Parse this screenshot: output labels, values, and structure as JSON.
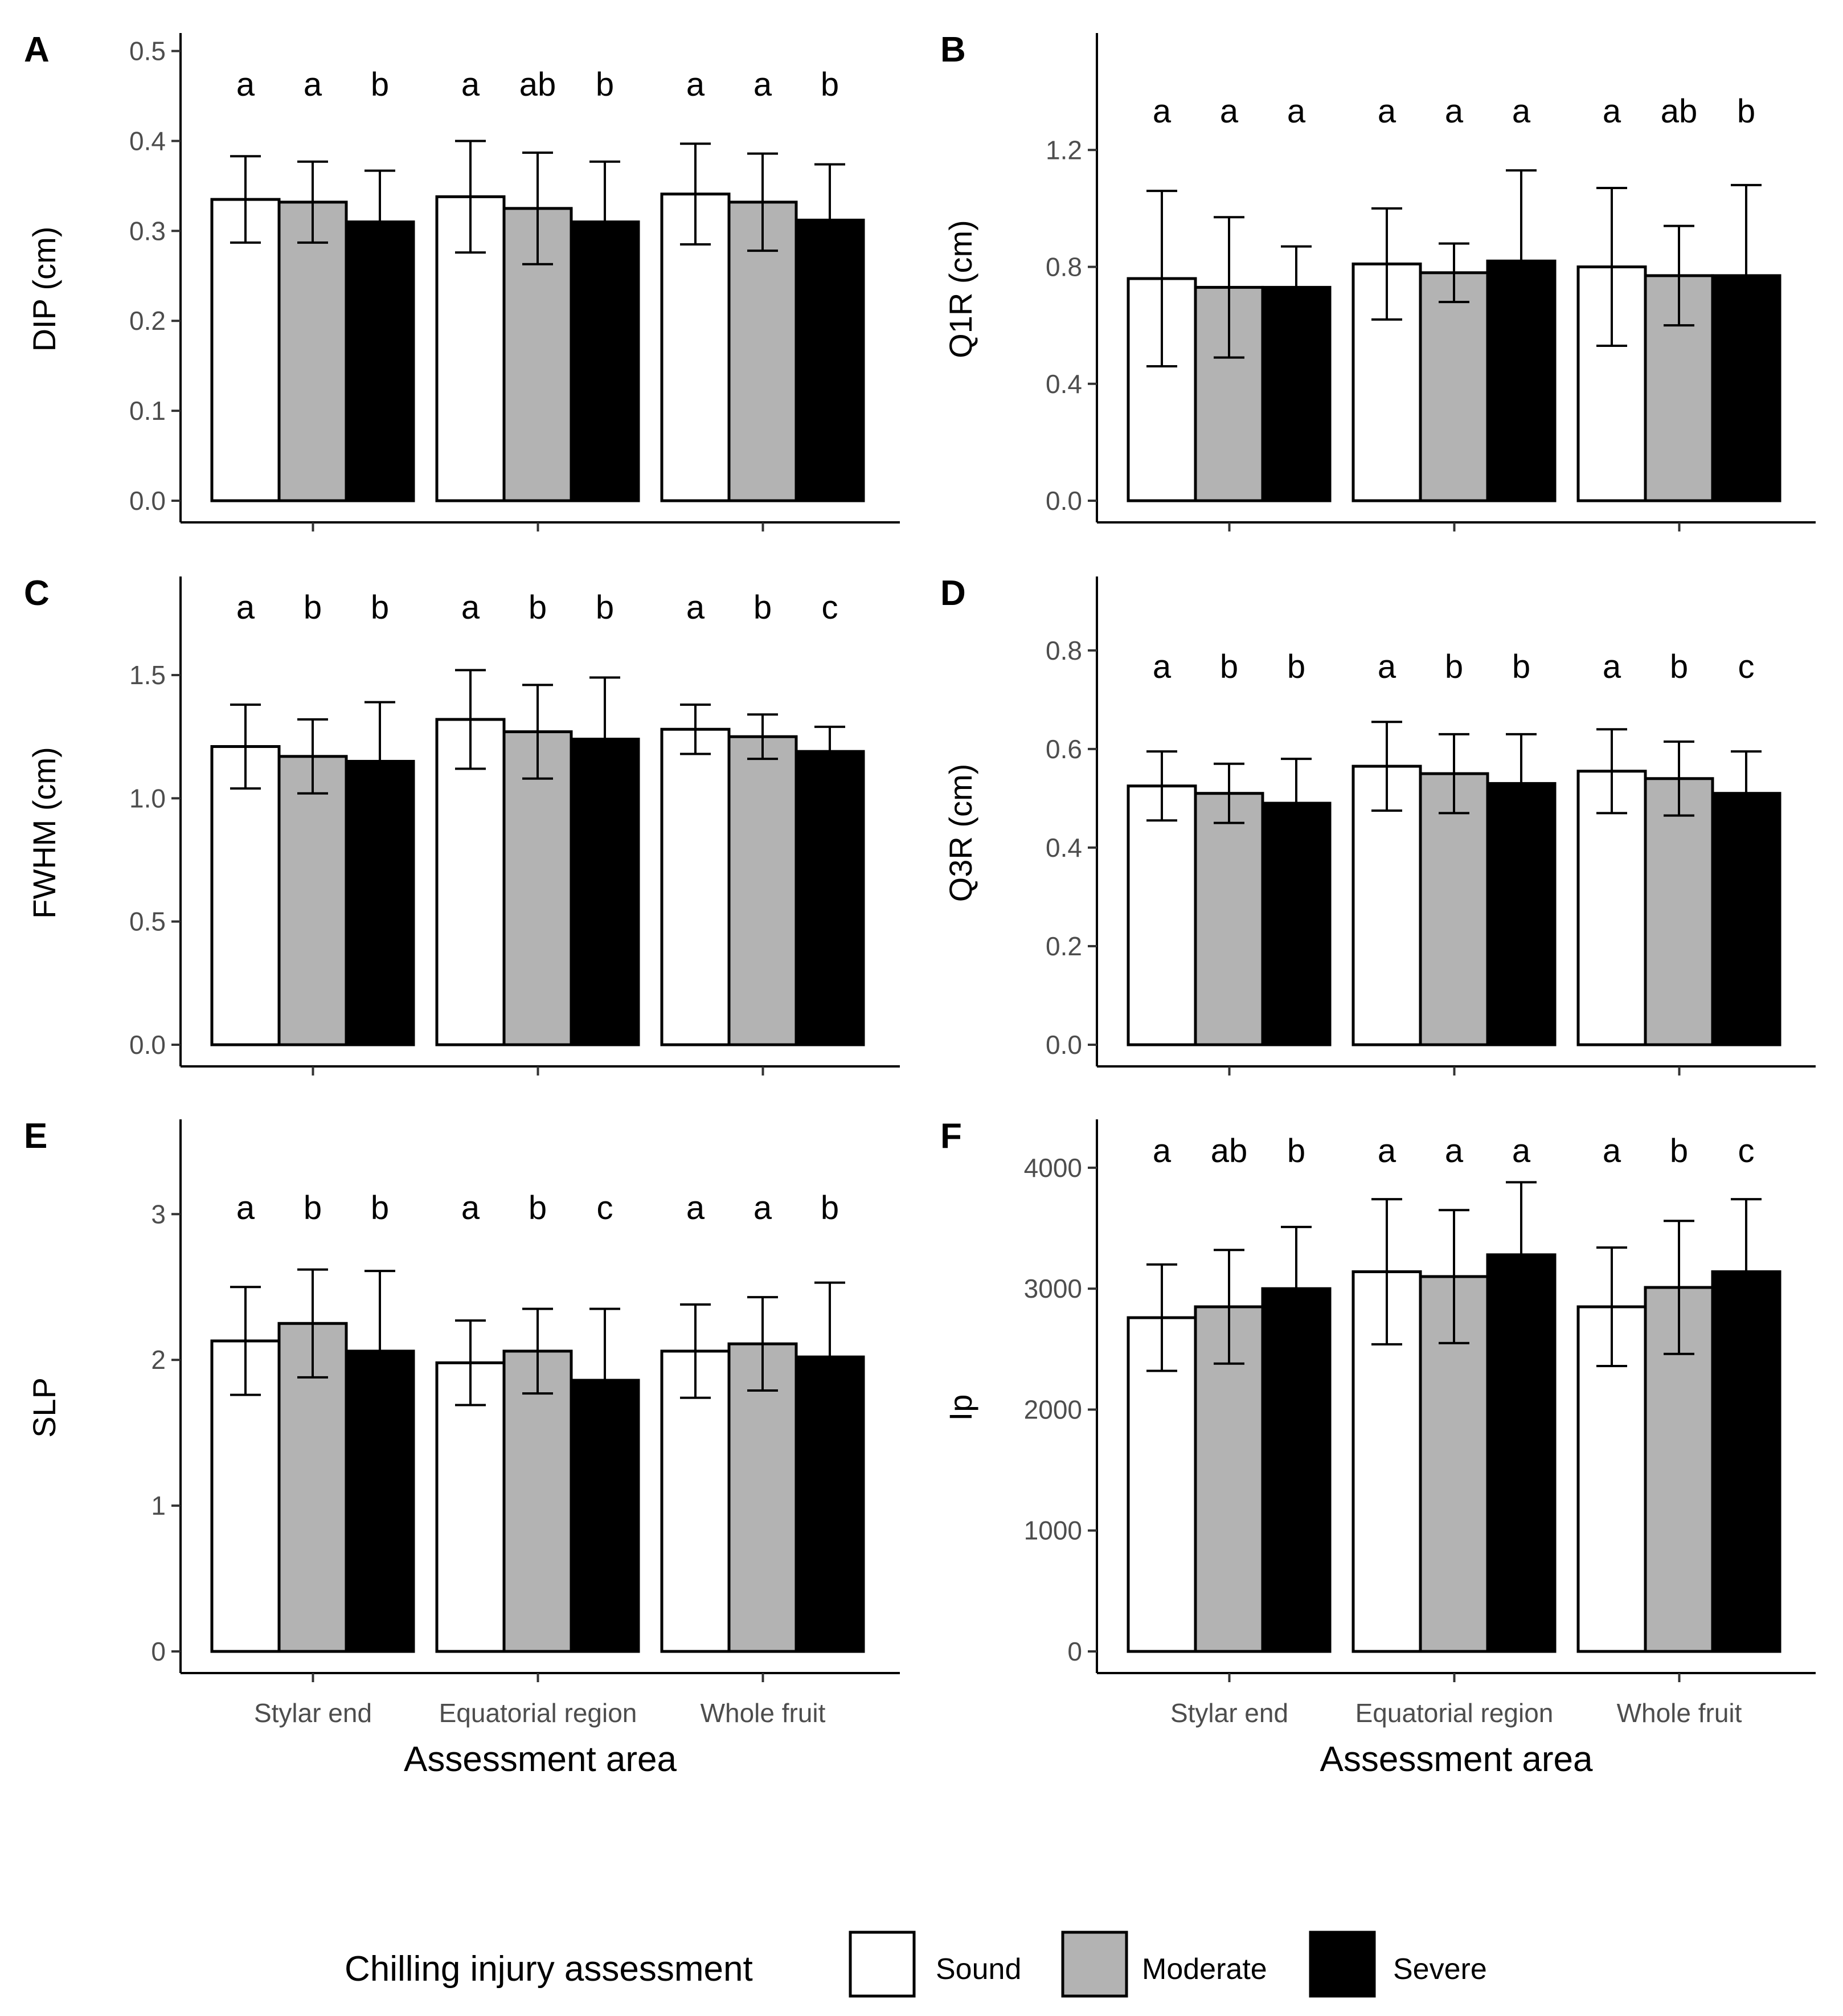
{
  "categories": [
    "Stylar end",
    "Equatorial region",
    "Whole fruit"
  ],
  "xlabel": "Assessment area",
  "legend": {
    "title": "Chilling injury assessment",
    "items": [
      {
        "name": "Sound",
        "color": "#ffffff"
      },
      {
        "name": "Moderate",
        "color": "#b3b3b3"
      },
      {
        "name": "Severe",
        "color": "#000000"
      }
    ]
  },
  "chart_data": [
    {
      "panel": "A",
      "type": "bar",
      "ylabel": "DIP (cm)",
      "ylim": [
        0,
        0.52
      ],
      "yticks": [
        "0.0",
        "0.1",
        "0.2",
        "0.3",
        "0.4",
        "0.5"
      ],
      "categories": [
        "Stylar end",
        "Equatorial region",
        "Whole fruit"
      ],
      "series": [
        {
          "name": "Sound",
          "values": [
            0.335,
            0.338,
            0.341
          ],
          "err": [
            0.048,
            0.062,
            0.056
          ]
        },
        {
          "name": "Moderate",
          "values": [
            0.332,
            0.325,
            0.332
          ],
          "err": [
            0.045,
            0.062,
            0.054
          ]
        },
        {
          "name": "Severe",
          "values": [
            0.31,
            0.31,
            0.312
          ],
          "err": [
            0.057,
            0.067,
            0.062
          ]
        }
      ],
      "letters": [
        [
          "a",
          "a",
          "b"
        ],
        [
          "a",
          "ab",
          "b"
        ],
        [
          "a",
          "a",
          "b"
        ]
      ]
    },
    {
      "panel": "B",
      "type": "bar",
      "ylabel": "Q1R (cm)",
      "ylim": [
        0,
        1.6
      ],
      "yticks": [
        "0.0",
        "0.4",
        "0.8",
        "1.2"
      ],
      "categories": [
        "Stylar end",
        "Equatorial region",
        "Whole fruit"
      ],
      "series": [
        {
          "name": "Sound",
          "values": [
            0.76,
            0.81,
            0.8
          ],
          "err": [
            0.3,
            0.19,
            0.27
          ]
        },
        {
          "name": "Moderate",
          "values": [
            0.73,
            0.78,
            0.77
          ],
          "err": [
            0.24,
            0.1,
            0.17
          ]
        },
        {
          "name": "Severe",
          "values": [
            0.73,
            0.82,
            0.77
          ],
          "err": [
            0.14,
            0.31,
            0.31
          ]
        }
      ],
      "letters": [
        [
          "a",
          "a",
          "a"
        ],
        [
          "a",
          "a",
          "a"
        ],
        [
          "a",
          "ab",
          "b"
        ]
      ]
    },
    {
      "panel": "C",
      "type": "bar",
      "ylabel": "FWHM (cm)",
      "ylim": [
        0,
        1.9
      ],
      "yticks": [
        "0.0",
        "0.5",
        "1.0",
        "1.5"
      ],
      "categories": [
        "Stylar end",
        "Equatorial region",
        "Whole fruit"
      ],
      "series": [
        {
          "name": "Sound",
          "values": [
            1.21,
            1.32,
            1.28
          ],
          "err": [
            0.17,
            0.2,
            0.1
          ]
        },
        {
          "name": "Moderate",
          "values": [
            1.17,
            1.27,
            1.25
          ],
          "err": [
            0.15,
            0.19,
            0.09
          ]
        },
        {
          "name": "Severe",
          "values": [
            1.15,
            1.24,
            1.19
          ],
          "err": [
            0.24,
            0.25,
            0.1
          ]
        }
      ],
      "letters": [
        [
          "a",
          "b",
          "b"
        ],
        [
          "a",
          "b",
          "b"
        ],
        [
          "a",
          "b",
          "c"
        ]
      ]
    },
    {
      "panel": "D",
      "type": "bar",
      "ylabel": "Q3R (cm)",
      "ylim": [
        0,
        0.95
      ],
      "yticks": [
        "0.0",
        "0.2",
        "0.4",
        "0.6",
        "0.8"
      ],
      "categories": [
        "Stylar end",
        "Equatorial region",
        "Whole fruit"
      ],
      "series": [
        {
          "name": "Sound",
          "values": [
            0.525,
            0.565,
            0.555
          ],
          "err": [
            0.07,
            0.09,
            0.085
          ]
        },
        {
          "name": "Moderate",
          "values": [
            0.51,
            0.55,
            0.54
          ],
          "err": [
            0.06,
            0.08,
            0.075
          ]
        },
        {
          "name": "Severe",
          "values": [
            0.49,
            0.53,
            0.51
          ],
          "err": [
            0.09,
            0.1,
            0.085
          ]
        }
      ],
      "letters": [
        [
          "a",
          "b",
          "b"
        ],
        [
          "a",
          "b",
          "b"
        ],
        [
          "a",
          "b",
          "c"
        ]
      ]
    },
    {
      "panel": "E",
      "type": "bar",
      "ylabel": "SLP",
      "ylim": [
        0,
        3.65
      ],
      "yticks": [
        "0",
        "1",
        "2",
        "3"
      ],
      "categories": [
        "Stylar end",
        "Equatorial region",
        "Whole fruit"
      ],
      "series": [
        {
          "name": "Sound",
          "values": [
            2.13,
            1.98,
            2.06
          ],
          "err": [
            0.37,
            0.29,
            0.32
          ]
        },
        {
          "name": "Moderate",
          "values": [
            2.25,
            2.06,
            2.11
          ],
          "err": [
            0.37,
            0.29,
            0.32
          ]
        },
        {
          "name": "Severe",
          "values": [
            2.06,
            1.86,
            2.02
          ],
          "err": [
            0.55,
            0.49,
            0.51
          ]
        }
      ],
      "letters": [
        [
          "a",
          "b",
          "b"
        ],
        [
          "a",
          "b",
          "c"
        ],
        [
          "a",
          "a",
          "b"
        ]
      ]
    },
    {
      "panel": "F",
      "type": "bar",
      "ylabel": "Ip",
      "ylim": [
        0,
        4400
      ],
      "yticks": [
        "0",
        "1000",
        "2000",
        "3000",
        "4000"
      ],
      "categories": [
        "Stylar end",
        "Equatorial region",
        "Whole fruit"
      ],
      "series": [
        {
          "name": "Sound",
          "values": [
            2760,
            3140,
            2850
          ],
          "err": [
            440,
            600,
            490
          ]
        },
        {
          "name": "Moderate",
          "values": [
            2850,
            3100,
            3010
          ],
          "err": [
            470,
            550,
            550
          ]
        },
        {
          "name": "Severe",
          "values": [
            3000,
            3280,
            3140
          ],
          "err": [
            510,
            600,
            600
          ]
        }
      ],
      "letters": [
        [
          "a",
          "ab",
          "b"
        ],
        [
          "a",
          "a",
          "a"
        ],
        [
          "a",
          "b",
          "c"
        ]
      ]
    }
  ]
}
